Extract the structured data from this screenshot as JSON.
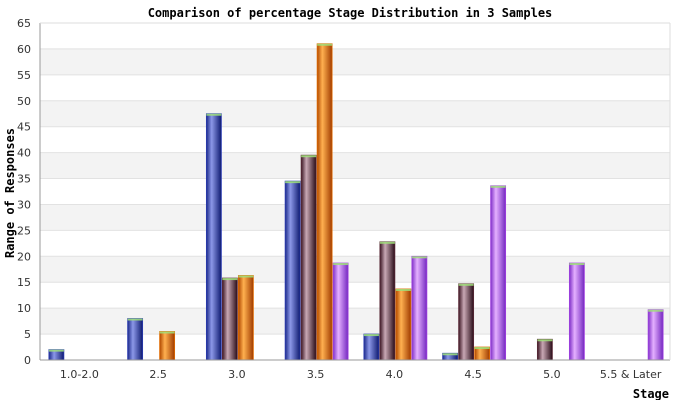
{
  "chart_data": {
    "type": "bar",
    "title": "Comparison of percentage Stage Distribution in 3 Samples",
    "xlabel": "Stage",
    "ylabel": "Range of Responses",
    "ylim": [
      0,
      65
    ],
    "yticks": [
      0,
      5,
      10,
      15,
      20,
      25,
      30,
      35,
      40,
      45,
      50,
      55,
      60,
      65
    ],
    "grid": "horizontal-bands",
    "legend": "none",
    "categories": [
      "1.0-2.0",
      "2.5",
      "3.0",
      "3.5",
      "4.0",
      "4.5",
      "5.0",
      "5.5 & Later"
    ],
    "series": [
      {
        "color": "#2a3bb0",
        "values": [
          2,
          8,
          47.5,
          34.5,
          5,
          1.3,
          0,
          0
        ]
      },
      {
        "color": "#5a2a38",
        "values": [
          0,
          0,
          15.8,
          39.5,
          22.8,
          14.7,
          4,
          0
        ]
      },
      {
        "color": "#e06a00",
        "values": [
          0,
          5.5,
          16.3,
          61,
          13.7,
          2.5,
          0,
          0
        ]
      },
      {
        "color": "#a040e0",
        "values": [
          0,
          0,
          0,
          18.7,
          20,
          33.6,
          18.7,
          9.7
        ]
      }
    ]
  }
}
